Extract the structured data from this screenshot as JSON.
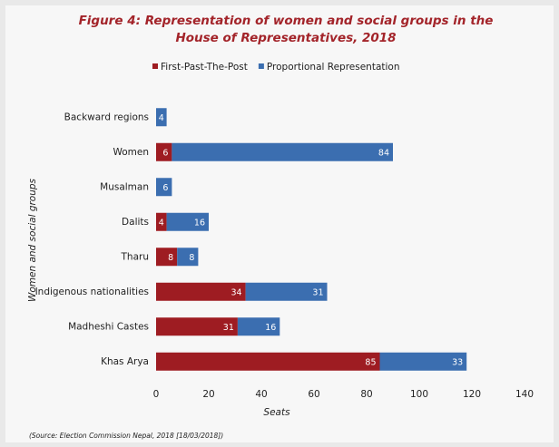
{
  "chart_data": {
    "type": "stacked-bar-horizontal",
    "title": "Figure 4: Representation of women and social groups in the House of Representatives, 2018",
    "categories": [
      "Backward regions",
      "Women",
      "Musalman",
      "Dalits",
      "Tharu",
      "Indigenous nationalities",
      "Madheshi Castes",
      "Khas Arya"
    ],
    "series": [
      {
        "name": "First-Past-The-Post",
        "color": "#9e1c22",
        "values": [
          null,
          6,
          null,
          4,
          8,
          34,
          31,
          85
        ]
      },
      {
        "name": "Proportional Representation",
        "color": "#3b6eb0",
        "values": [
          4,
          84,
          6,
          16,
          8,
          31,
          16,
          33
        ]
      }
    ],
    "xlim": [
      0,
      140
    ],
    "xticks": [
      0,
      20,
      40,
      60,
      80,
      100,
      120,
      140
    ],
    "xlabel": "Seats",
    "ylabel": "Women and social groups",
    "source": "(Source: Election Commission Nepal, 2018 [18/03/2018])"
  }
}
